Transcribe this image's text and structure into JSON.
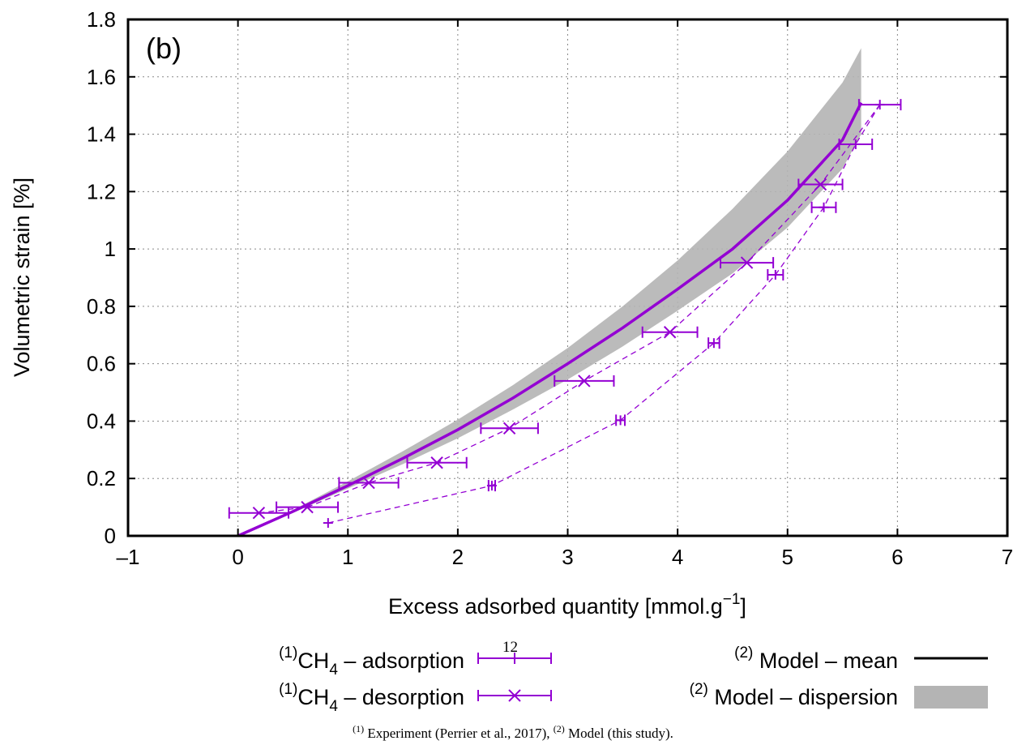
{
  "chart_data": {
    "type": "line",
    "panel_label": "(b)",
    "xlabel": "Excess adsorbed quantity [mmol.g",
    "xlabel_sup": "−1",
    "xlabel_tail": "]",
    "ylabel": "Volumetric strain [%]",
    "xlim": [
      -1,
      7
    ],
    "ylim": [
      0,
      1.8
    ],
    "x_ticks": [
      -1,
      0,
      1,
      2,
      3,
      4,
      5,
      6,
      7
    ],
    "x_tick_labels": [
      "–1",
      "0",
      "1",
      "2",
      "3",
      "4",
      "5",
      "6",
      "7"
    ],
    "y_ticks": [
      0,
      0.2,
      0.4,
      0.6,
      0.8,
      1,
      1.2,
      1.4,
      1.6,
      1.8
    ],
    "y_tick_labels": [
      "0",
      "0.2",
      "0.4",
      "0.6",
      "0.8",
      "1",
      "1.2",
      "1.4",
      "1.6",
      "1.8"
    ],
    "grid": true,
    "colors": {
      "experiment": "#9400d3",
      "model_mean": "#9400d3",
      "dispersion": "#b4b4b4"
    },
    "series": [
      {
        "name": "CH4 – adsorption",
        "legend_sup": "(1)",
        "legend_main": "CH",
        "legend_sub": "4",
        "legend_tail": " – adsorption",
        "marker": "plus",
        "points": [
          {
            "x": 0.82,
            "y": 0.045,
            "xerr": 0.0
          },
          {
            "x": 2.31,
            "y": 0.175,
            "xerr": 0.03
          },
          {
            "x": 3.48,
            "y": 0.403,
            "xerr": 0.04
          },
          {
            "x": 4.33,
            "y": 0.672,
            "xerr": 0.05
          },
          {
            "x": 4.89,
            "y": 0.91,
            "xerr": 0.07
          },
          {
            "x": 5.33,
            "y": 1.145,
            "xerr": 0.11
          },
          {
            "x": 5.62,
            "y": 1.365,
            "xerr": 0.15
          },
          {
            "x": 5.84,
            "y": 1.503,
            "xerr": 0.19
          }
        ]
      },
      {
        "name": "CH4 – desorption",
        "legend_sup": "(1)",
        "legend_main": "CH",
        "legend_sub": "4",
        "legend_tail": " – desorption",
        "marker": "cross",
        "points": [
          {
            "x": 0.19,
            "y": 0.08,
            "xerr": 0.27
          },
          {
            "x": 0.63,
            "y": 0.1,
            "xerr": 0.28
          },
          {
            "x": 1.19,
            "y": 0.185,
            "xerr": 0.27
          },
          {
            "x": 1.81,
            "y": 0.255,
            "xerr": 0.27
          },
          {
            "x": 2.47,
            "y": 0.375,
            "xerr": 0.26
          },
          {
            "x": 3.15,
            "y": 0.54,
            "xerr": 0.27
          },
          {
            "x": 3.93,
            "y": 0.71,
            "xerr": 0.25
          },
          {
            "x": 4.63,
            "y": 0.952,
            "xerr": 0.24
          },
          {
            "x": 5.3,
            "y": 1.225,
            "xerr": 0.2
          }
        ]
      },
      {
        "name": "Model – mean",
        "legend_sup": "(2)",
        "legend_main": " Model – mean",
        "points": [
          {
            "x": 0,
            "y": 0
          },
          {
            "x": 0.5,
            "y": 0.085
          },
          {
            "x": 1.0,
            "y": 0.175
          },
          {
            "x": 1.5,
            "y": 0.27
          },
          {
            "x": 2.0,
            "y": 0.37
          },
          {
            "x": 2.5,
            "y": 0.48
          },
          {
            "x": 3.0,
            "y": 0.6
          },
          {
            "x": 3.5,
            "y": 0.725
          },
          {
            "x": 4.0,
            "y": 0.86
          },
          {
            "x": 4.5,
            "y": 1.0
          },
          {
            "x": 5.0,
            "y": 1.17
          },
          {
            "x": 5.5,
            "y": 1.38
          },
          {
            "x": 5.67,
            "y": 1.51
          }
        ]
      },
      {
        "name": "Model – dispersion",
        "legend_sup": "(2)",
        "legend_main": " Model – dispersion",
        "points": [
          {
            "x": 0,
            "low": 0,
            "high": 0
          },
          {
            "x": 0.5,
            "low": 0.08,
            "high": 0.09
          },
          {
            "x": 1.0,
            "low": 0.165,
            "high": 0.19
          },
          {
            "x": 1.5,
            "low": 0.25,
            "high": 0.295
          },
          {
            "x": 2.0,
            "low": 0.34,
            "high": 0.405
          },
          {
            "x": 2.5,
            "low": 0.44,
            "high": 0.525
          },
          {
            "x": 3.0,
            "low": 0.545,
            "high": 0.655
          },
          {
            "x": 3.5,
            "low": 0.66,
            "high": 0.8
          },
          {
            "x": 4.0,
            "low": 0.785,
            "high": 0.96
          },
          {
            "x": 4.5,
            "low": 0.915,
            "high": 1.14
          },
          {
            "x": 5.0,
            "low": 1.075,
            "high": 1.34
          },
          {
            "x": 5.5,
            "low": 1.28,
            "high": 1.58
          },
          {
            "x": 5.67,
            "low": 1.4,
            "high": 1.7
          }
        ]
      }
    ]
  },
  "stray_label": "12",
  "footnote": {
    "part1_sup": "(1)",
    "part1": " Experiment (Perrier et al., 2017), ",
    "part2_sup": "(2)",
    "part2": " Model (this study)."
  }
}
